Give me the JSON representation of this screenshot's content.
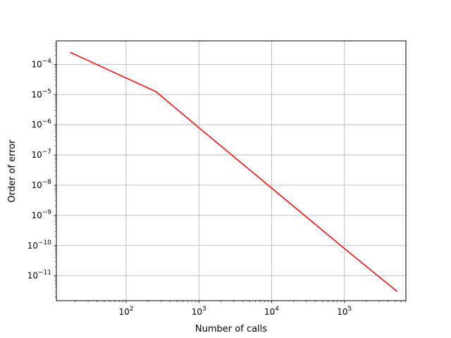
{
  "chart_data": {
    "type": "line",
    "title": "",
    "xlabel": "Number of calls",
    "ylabel": "Order of error",
    "x_scale": "log",
    "y_scale": "log",
    "xlim": [
      11,
      700000
    ],
    "ylim": [
      1.5e-12,
      0.0006
    ],
    "grid": true,
    "legend": "none",
    "x_ticks": [
      {
        "value": 100,
        "base": "10",
        "exp": "2"
      },
      {
        "value": 1000,
        "base": "10",
        "exp": "3"
      },
      {
        "value": 10000,
        "base": "10",
        "exp": "4"
      },
      {
        "value": 100000,
        "base": "10",
        "exp": "5"
      }
    ],
    "y_ticks": [
      {
        "value": 0.0001,
        "base": "10",
        "exp": "−4"
      },
      {
        "value": 1e-05,
        "base": "10",
        "exp": "−5"
      },
      {
        "value": 1e-06,
        "base": "10",
        "exp": "−6"
      },
      {
        "value": 1e-07,
        "base": "10",
        "exp": "−7"
      },
      {
        "value": 1e-08,
        "base": "10",
        "exp": "−8"
      },
      {
        "value": 1e-09,
        "base": "10",
        "exp": "−9"
      },
      {
        "value": 1e-10,
        "base": "10",
        "exp": "−10"
      },
      {
        "value": 1e-11,
        "base": "10",
        "exp": "−11"
      }
    ],
    "series": [
      {
        "color": "#ff0000",
        "x": [
          17,
          257,
          1000,
          10000,
          100000,
          531441
        ],
        "y": [
          0.00025,
          1.25e-05,
          8e-07,
          8e-09,
          8e-11,
          3e-12
        ]
      }
    ]
  }
}
